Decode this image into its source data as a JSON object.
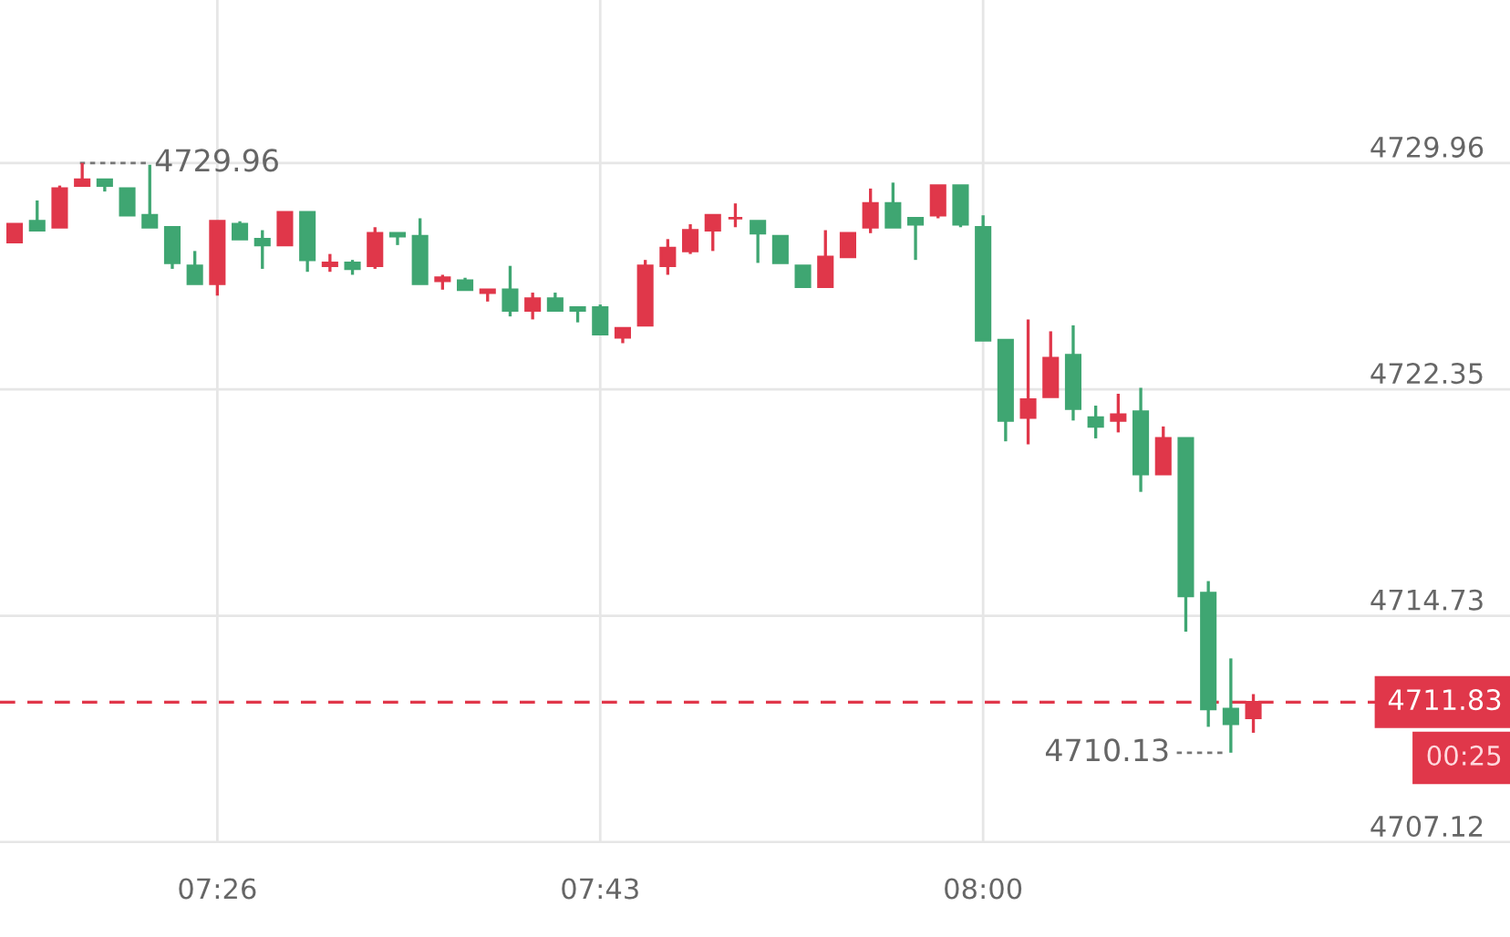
{
  "chart_data": {
    "type": "candlestick",
    "categories": [
      null,
      null,
      null,
      null,
      null,
      null,
      null,
      null,
      null,
      "07:26",
      null,
      null,
      null,
      null,
      null,
      null,
      null,
      null,
      null,
      null,
      null,
      null,
      null,
      null,
      null,
      null,
      "07:43",
      null,
      null,
      null,
      null,
      null,
      null,
      null,
      null,
      null,
      null,
      null,
      null,
      null,
      null,
      null,
      null,
      "08:00",
      null,
      null,
      null,
      null,
      null,
      null,
      null,
      null,
      null,
      null,
      null,
      null
    ],
    "ohlc": [
      [
        4727.3,
        4727.9,
        4727.3,
        4727.9
      ],
      [
        4728.0,
        4728.7,
        4727.7,
        4727.7
      ],
      [
        4727.8,
        4729.2,
        4727.8,
        4729.1
      ],
      [
        4729.2,
        4729.96,
        4729.2,
        4729.4
      ],
      [
        4729.4,
        4729.4,
        4729.0,
        4729.2
      ],
      [
        4729.1,
        4729.1,
        4728.2,
        4728.2
      ],
      [
        4728.2,
        4729.9,
        4727.8,
        4727.8
      ],
      [
        4727.8,
        4727.8,
        4726.4,
        4726.6
      ],
      [
        4726.5,
        4727.0,
        4725.9,
        4725.9
      ],
      [
        4725.9,
        4728.0,
        4725.5,
        4728.0
      ],
      [
        4727.9,
        4728.0,
        4727.4,
        4727.4
      ],
      [
        4727.4,
        4727.7,
        4726.4,
        4727.2
      ],
      [
        4727.2,
        4728.3,
        4727.2,
        4728.3
      ],
      [
        4728.3,
        4728.3,
        4726.3,
        4726.7
      ],
      [
        4726.5,
        4726.9,
        4726.3,
        4726.6
      ],
      [
        4726.6,
        4726.7,
        4726.2,
        4726.4
      ],
      [
        4726.5,
        4727.8,
        4726.4,
        4727.6
      ],
      [
        4727.6,
        4727.6,
        4727.2,
        4727.5
      ],
      [
        4727.5,
        4728.1,
        4725.9,
        4725.9
      ],
      [
        4726.0,
        4726.2,
        4725.7,
        4726.1
      ],
      [
        4726.0,
        4726.1,
        4725.7,
        4725.7
      ],
      [
        4725.6,
        4725.7,
        4725.3,
        4725.7
      ],
      [
        4725.7,
        4726.5,
        4724.8,
        4725.0
      ],
      [
        4725.0,
        4725.6,
        4724.7,
        4725.4
      ],
      [
        4725.4,
        4725.6,
        4725.0,
        4725.0
      ],
      [
        4725.1,
        4725.1,
        4724.6,
        4725.0
      ],
      [
        4725.1,
        4725.2,
        4724.2,
        4724.2
      ],
      [
        4724.1,
        4724.4,
        4723.9,
        4724.4
      ],
      [
        4724.5,
        4726.7,
        4724.5,
        4726.5
      ],
      [
        4726.5,
        4727.4,
        4726.2,
        4727.1
      ],
      [
        4727.0,
        4727.9,
        4726.9,
        4727.7
      ],
      [
        4727.7,
        4728.2,
        4727.0,
        4728.2
      ],
      [
        4728.1,
        4728.6,
        4727.8,
        4728.1
      ],
      [
        4728.0,
        4728.0,
        4726.6,
        4727.6
      ],
      [
        4727.5,
        4727.5,
        4726.6,
        4726.6
      ],
      [
        4726.5,
        4726.5,
        4725.8,
        4725.8
      ],
      [
        4725.8,
        4727.7,
        4725.8,
        4726.8
      ],
      [
        4726.8,
        4727.6,
        4726.8,
        4727.6
      ],
      [
        4727.8,
        4729.1,
        4727.6,
        4728.6
      ],
      [
        4728.6,
        4729.3,
        4727.8,
        4727.8
      ],
      [
        4728.1,
        4728.1,
        4726.7,
        4727.9
      ],
      [
        4728.2,
        4729.2,
        4728.1,
        4729.2
      ],
      [
        4729.2,
        4729.2,
        4727.8,
        4727.9
      ],
      [
        4727.8,
        4728.2,
        4724.0,
        4724.0
      ],
      [
        4724.0,
        4724.0,
        4720.6,
        4721.3
      ],
      [
        4721.4,
        4724.7,
        4720.5,
        4722.0
      ],
      [
        4722.1,
        4724.3,
        4722.1,
        4723.4
      ],
      [
        4723.5,
        4724.5,
        4721.3,
        4721.7
      ],
      [
        4721.4,
        4721.8,
        4720.7,
        4721.1
      ],
      [
        4721.3,
        4722.2,
        4720.9,
        4721.5
      ],
      [
        4721.6,
        4722.4,
        4718.9,
        4719.5
      ],
      [
        4719.5,
        4721.1,
        4719.5,
        4720.7
      ],
      [
        4720.7,
        4720.7,
        4714.2,
        4715.4
      ],
      [
        4715.5,
        4715.9,
        4711.0,
        4711.6
      ],
      [
        4711.6,
        4713.3,
        4710.13,
        4711.1
      ],
      [
        4711.3,
        4712.1,
        4710.8,
        4711.83
      ]
    ],
    "colors": [
      "#e0374a",
      "#3fa672",
      "#e0374a",
      "#e0374a",
      "#3fa672",
      "#3fa672",
      "#3fa672",
      "#3fa672",
      "#3fa672",
      "#e0374a",
      "#3fa672",
      "#3fa672",
      "#e0374a",
      "#3fa672",
      "#e0374a",
      "#3fa672",
      "#e0374a",
      "#3fa672",
      "#3fa672",
      "#e0374a",
      "#3fa672",
      "#e0374a",
      "#3fa672",
      "#e0374a",
      "#3fa672",
      "#3fa672",
      "#3fa672",
      "#e0374a",
      "#e0374a",
      "#e0374a",
      "#e0374a",
      "#e0374a",
      "#e0374a",
      "#3fa672",
      "#3fa672",
      "#3fa672",
      "#e0374a",
      "#e0374a",
      "#e0374a",
      "#3fa672",
      "#3fa672",
      "#e0374a",
      "#3fa672",
      "#3fa672",
      "#3fa672",
      "#e0374a",
      "#e0374a",
      "#3fa672",
      "#3fa672",
      "#e0374a",
      "#3fa672",
      "#e0374a",
      "#3fa672",
      "#3fa672",
      "#3fa672",
      "#e0374a"
    ],
    "ylim": [
      4707.12,
      4735.44
    ],
    "yticks": [
      4707.12,
      4714.73,
      4722.35,
      4729.96
    ],
    "grid": true,
    "ref_lines": [
      {
        "axis": "y",
        "value": 4711.83,
        "label": "4711.83",
        "color": "#e0374a",
        "line_style": "dashed"
      }
    ],
    "annotations": [
      "00:25",
      "4729.96",
      "4710.13"
    ]
  }
}
